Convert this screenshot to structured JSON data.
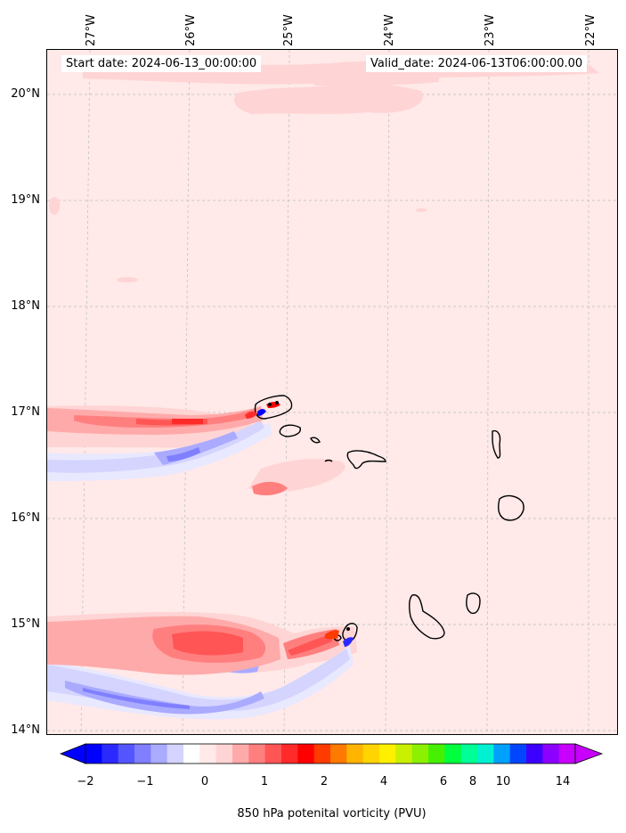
{
  "map": {
    "variable": "850 hPa potenital vorticity (PVU)",
    "start_label": "Start date: 2024-06-13_00:00:00",
    "valid_label": "Valid_date: 2024-06-13T06:00:00.00",
    "lat_ticks": [
      "20°N",
      "19°N",
      "18°N",
      "17°N",
      "16°N",
      "15°N",
      "14°N"
    ],
    "lon_ticks": [
      "27°W",
      "26°W",
      "25°W",
      "24°W",
      "23°W",
      "22°W"
    ],
    "background_color": "#ffe9e9",
    "islands": [
      "Santo Antão",
      "São Vicente",
      "Santa Luzia",
      "São Nicolau",
      "Sal",
      "Boa Vista",
      "Maio",
      "Santiago",
      "Fogo",
      "Brava"
    ]
  },
  "colorbar": {
    "tick_labels": [
      "−2",
      "−1",
      "0",
      "1",
      "2",
      "4",
      "6",
      "8",
      "10",
      "14"
    ],
    "colors": [
      "#0000ff",
      "#2a2aff",
      "#5555ff",
      "#7f7fff",
      "#aaaaff",
      "#d4d4ff",
      "#ffffff",
      "#ffe9e9",
      "#ffd4d4",
      "#ffaaaa",
      "#ff7f7f",
      "#ff5555",
      "#ff2a2a",
      "#ff0000",
      "#ff3b00",
      "#ff7a00",
      "#ffb400",
      "#ffd400",
      "#fff000",
      "#c8f000",
      "#8cf000",
      "#46f000",
      "#00ff3c",
      "#00ff96",
      "#00f0d2",
      "#00a0ff",
      "#0046ff",
      "#3c00ff",
      "#8c00ff",
      "#c800ff"
    ]
  }
}
